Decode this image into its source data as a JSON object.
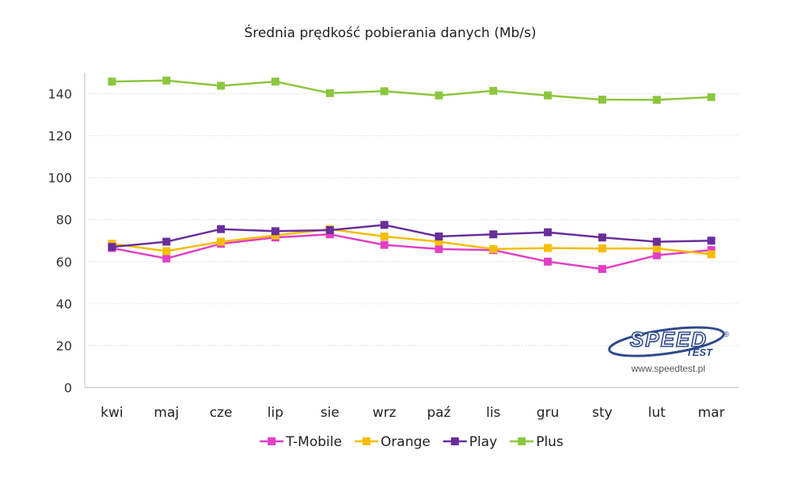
{
  "chart_data": {
    "type": "line",
    "title": "Średnia prędkość pobierania danych (Mb/s)",
    "xlabel": "",
    "ylabel": "",
    "ylim": [
      0,
      150
    ],
    "yticks": [
      0,
      20,
      40,
      60,
      80,
      100,
      120,
      140
    ],
    "grid": true,
    "legend_position": "bottom",
    "categories": [
      "kwi",
      "maj",
      "cze",
      "lip",
      "sie",
      "wrz",
      "paź",
      "lis",
      "gru",
      "sty",
      "lut",
      "mar"
    ],
    "series": [
      {
        "name": "T-Mobile",
        "color": "#e23fc4",
        "values": [
          66.5,
          61.5,
          68.5,
          71.5,
          73,
          68,
          66,
          65.5,
          60,
          56.5,
          63,
          65.5
        ]
      },
      {
        "name": "Orange",
        "color": "#f5bd00",
        "values": [
          68.5,
          65,
          69.5,
          72.5,
          75.5,
          72,
          69.5,
          66,
          66.5,
          66.3,
          66.3,
          63.5
        ]
      },
      {
        "name": "Play",
        "color": "#6a2d9c",
        "values": [
          67,
          69.5,
          75.5,
          74.5,
          75,
          77.5,
          72,
          73,
          74,
          71.5,
          69.5,
          70
        ]
      },
      {
        "name": "Plus",
        "color": "#8cc63f",
        "values": [
          145.8,
          146.3,
          143.8,
          145.8,
          140.3,
          141.2,
          139.2,
          141.4,
          139.2,
          137.2,
          137.1,
          138.4
        ]
      }
    ]
  },
  "logo": {
    "brand": "SPEED",
    "sub": "TEST",
    "mark": "®",
    "url": "www.speedtest.pl"
  }
}
